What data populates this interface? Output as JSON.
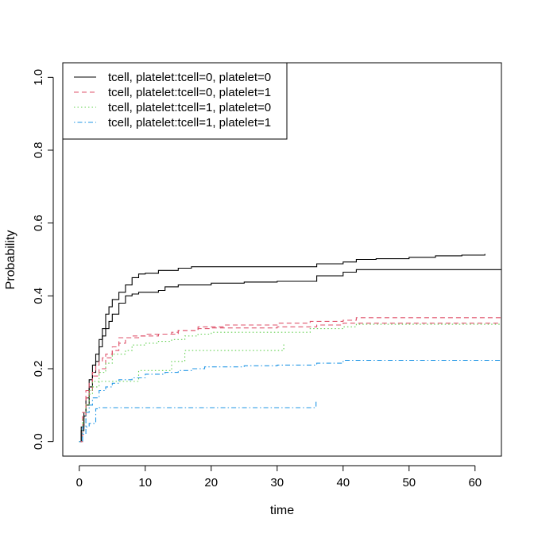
{
  "chart_data": {
    "type": "line",
    "step": true,
    "xlabel": "time",
    "ylabel": "Probability",
    "xlim": [
      -2.5,
      64
    ],
    "ylim": [
      -0.04,
      1.04
    ],
    "x_ticks": [
      0,
      10,
      20,
      30,
      40,
      50,
      60
    ],
    "y_ticks": [
      0.0,
      0.2,
      0.4,
      0.6,
      0.8,
      1.0
    ],
    "x_tick_labels": [
      "0",
      "10",
      "20",
      "30",
      "40",
      "50",
      "60"
    ],
    "y_tick_labels": [
      "0.0",
      "0.2",
      "0.4",
      "0.6",
      "0.8",
      "1.0"
    ],
    "legend_position": "top-left",
    "series": [
      {
        "name": "tcell, platelet:tcell=0, platelet=0",
        "color": "#000000",
        "dash": "solid",
        "lines": [
          [
            [
              0,
              0
            ],
            [
              0.3,
              0.04
            ],
            [
              0.7,
              0.08
            ],
            [
              1.0,
              0.12
            ],
            [
              1.5,
              0.17
            ],
            [
              2.0,
              0.21
            ],
            [
              2.5,
              0.24
            ],
            [
              3.0,
              0.28
            ],
            [
              3.5,
              0.31
            ],
            [
              4.0,
              0.35
            ],
            [
              4.5,
              0.37
            ],
            [
              5.0,
              0.39
            ],
            [
              6.0,
              0.41
            ],
            [
              7.0,
              0.43
            ],
            [
              8.0,
              0.45
            ],
            [
              9.0,
              0.46
            ],
            [
              10,
              0.462
            ],
            [
              12,
              0.47
            ],
            [
              15,
              0.476
            ],
            [
              17,
              0.48
            ],
            [
              25,
              0.48
            ],
            [
              36,
              0.48
            ],
            [
              36,
              0.488
            ],
            [
              40,
              0.493
            ],
            [
              42,
              0.5
            ],
            [
              45,
              0.502
            ],
            [
              50,
              0.506
            ],
            [
              54,
              0.51
            ],
            [
              58,
              0.512
            ],
            [
              61.5,
              0.515
            ]
          ],
          [
            [
              0,
              0
            ],
            [
              0.3,
              0.03
            ],
            [
              0.7,
              0.07
            ],
            [
              1.0,
              0.1
            ],
            [
              1.5,
              0.15
            ],
            [
              2.0,
              0.19
            ],
            [
              2.5,
              0.22
            ],
            [
              3.0,
              0.26
            ],
            [
              3.5,
              0.29
            ],
            [
              4.0,
              0.31
            ],
            [
              4.5,
              0.33
            ],
            [
              5.0,
              0.35
            ],
            [
              6.0,
              0.38
            ],
            [
              7.0,
              0.4
            ],
            [
              8.0,
              0.405
            ],
            [
              9.0,
              0.41
            ],
            [
              12,
              0.415
            ],
            [
              13,
              0.425
            ],
            [
              15,
              0.43
            ],
            [
              20,
              0.435
            ],
            [
              25,
              0.438
            ],
            [
              30,
              0.44
            ],
            [
              36,
              0.44
            ],
            [
              36,
              0.455
            ],
            [
              40,
              0.455
            ],
            [
              40,
              0.465
            ],
            [
              42,
              0.472
            ],
            [
              64,
              0.472
            ]
          ]
        ]
      },
      {
        "name": "tcell, platelet:tcell=0, platelet=1",
        "color": "#DF536B",
        "dash": "dashed",
        "lines": [
          [
            [
              0,
              0
            ],
            [
              0.5,
              0.07
            ],
            [
              1,
              0.12
            ],
            [
              1.5,
              0.16
            ],
            [
              2,
              0.19
            ],
            [
              2.5,
              0.21
            ],
            [
              3,
              0.22
            ],
            [
              3.5,
              0.23
            ],
            [
              4,
              0.24
            ],
            [
              5,
              0.26
            ],
            [
              6,
              0.285
            ],
            [
              8,
              0.29
            ],
            [
              10,
              0.295
            ],
            [
              14,
              0.3
            ],
            [
              15,
              0.305
            ],
            [
              18,
              0.31
            ],
            [
              20,
              0.312
            ],
            [
              30,
              0.315
            ],
            [
              36,
              0.315
            ],
            [
              36,
              0.32
            ],
            [
              40,
              0.32
            ],
            [
              40,
              0.325
            ],
            [
              64,
              0.325
            ]
          ],
          [
            [
              0,
              0
            ],
            [
              0.5,
              0.08
            ],
            [
              1,
              0.14
            ],
            [
              2,
              0.18
            ],
            [
              3,
              0.2
            ],
            [
              4,
              0.23
            ],
            [
              5,
              0.25
            ],
            [
              6,
              0.27
            ],
            [
              7,
              0.285
            ],
            [
              9,
              0.29
            ],
            [
              12,
              0.295
            ],
            [
              15,
              0.305
            ],
            [
              18,
              0.315
            ],
            [
              22,
              0.32
            ],
            [
              30,
              0.325
            ],
            [
              35,
              0.325
            ],
            [
              35,
              0.33
            ],
            [
              40,
              0.333
            ],
            [
              42,
              0.34
            ],
            [
              64,
              0.34
            ]
          ]
        ]
      },
      {
        "name": "tcell, platelet:tcell=1, platelet=0",
        "color": "#61D04F",
        "dash": "dotted",
        "lines": [
          [
            [
              0,
              0
            ],
            [
              0.5,
              0.05
            ],
            [
              1,
              0.1
            ],
            [
              1.5,
              0.13
            ],
            [
              2,
              0.15
            ],
            [
              3,
              0.19
            ],
            [
              4,
              0.215
            ],
            [
              5,
              0.24
            ],
            [
              7,
              0.25
            ],
            [
              8,
              0.265
            ],
            [
              10,
              0.27
            ],
            [
              12,
              0.275
            ],
            [
              14,
              0.28
            ],
            [
              16,
              0.29
            ],
            [
              18,
              0.295
            ],
            [
              20,
              0.3
            ],
            [
              30,
              0.3
            ],
            [
              35,
              0.31
            ],
            [
              40,
              0.315
            ],
            [
              42,
              0.322
            ],
            [
              64,
              0.322
            ]
          ],
          [
            [
              0,
              0
            ],
            [
              0.5,
              0.06
            ],
            [
              1,
              0.1
            ],
            [
              1.5,
              0.14
            ],
            [
              2,
              0.165
            ],
            [
              9,
              0.165
            ],
            [
              9,
              0.195
            ],
            [
              14,
              0.2
            ],
            [
              14,
              0.22
            ],
            [
              16,
              0.225
            ],
            [
              16,
              0.25
            ],
            [
              25,
              0.25
            ],
            [
              31,
              0.255
            ],
            [
              31,
              0.27
            ]
          ]
        ]
      },
      {
        "name": "tcell, platelet:tcell=1, platelet=1",
        "color": "#2297E6",
        "dash": "dashdot",
        "lines": [
          [
            [
              0,
              0
            ],
            [
              0.5,
              0.04
            ],
            [
              1,
              0.08
            ],
            [
              1.5,
              0.1
            ],
            [
              2,
              0.12
            ],
            [
              3,
              0.14
            ],
            [
              4,
              0.15
            ],
            [
              5,
              0.16
            ],
            [
              6,
              0.17
            ],
            [
              8,
              0.175
            ],
            [
              10,
              0.185
            ],
            [
              13,
              0.19
            ],
            [
              15,
              0.195
            ],
            [
              17,
              0.2
            ],
            [
              19,
              0.205
            ],
            [
              25,
              0.208
            ],
            [
              30,
              0.21
            ],
            [
              35,
              0.21
            ],
            [
              36,
              0.215
            ],
            [
              40,
              0.215
            ],
            [
              40,
              0.223
            ],
            [
              64,
              0.223
            ]
          ],
          [
            [
              0,
              0
            ],
            [
              0.5,
              0.02
            ],
            [
              1,
              0.04
            ],
            [
              1.5,
              0.05
            ],
            [
              2,
              0.05
            ],
            [
              2.5,
              0.09
            ],
            [
              3,
              0.093
            ],
            [
              30,
              0.093
            ],
            [
              35.9,
              0.093
            ],
            [
              35.9,
              0.112
            ]
          ]
        ]
      }
    ]
  }
}
